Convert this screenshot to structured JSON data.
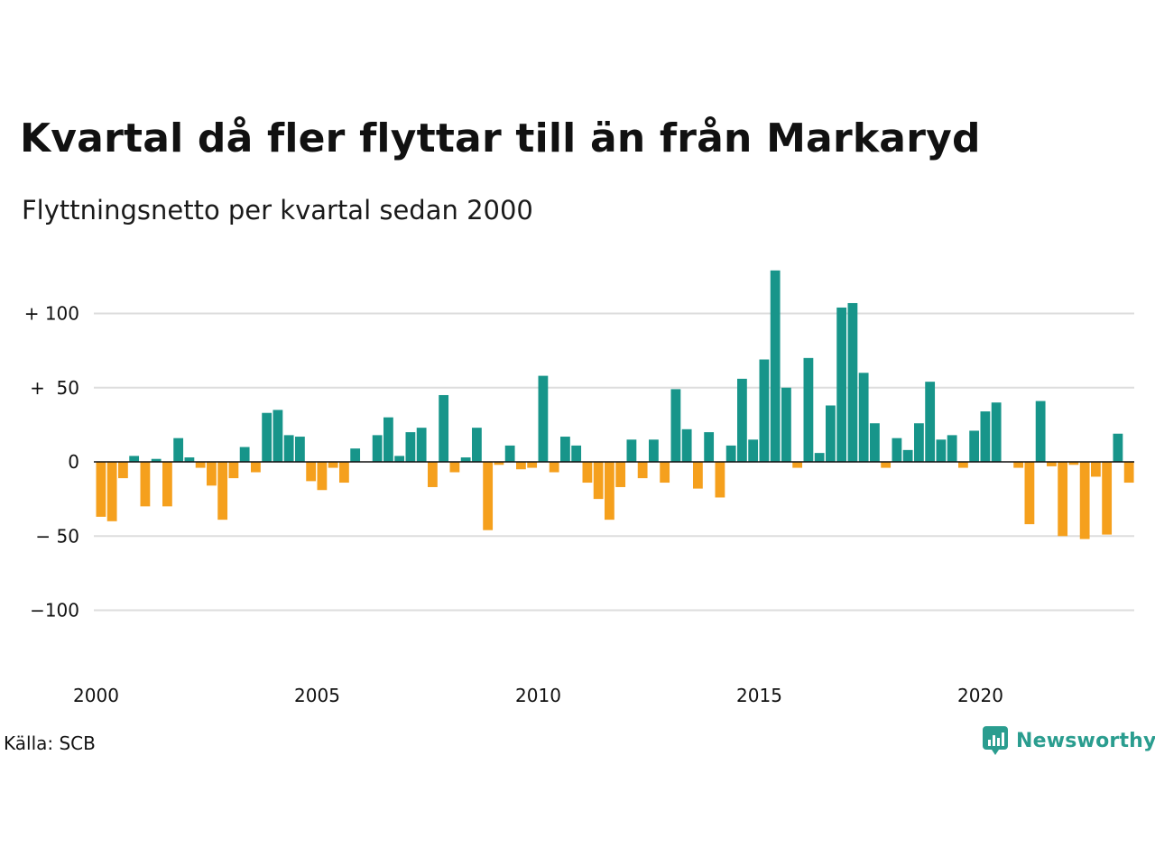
{
  "title": "Kvartal då fler flyttar till än från Markaryd",
  "subtitle": "Flyttningsnetto per kvartal sedan 2000",
  "source": "Källa: SCB",
  "brand": {
    "name": "Newsworthy",
    "icon": "newsworthy-logo-icon",
    "color": "#2a9d8f"
  },
  "colors": {
    "positive": "#17958a",
    "negative": "#f5a01d",
    "grid": "#dddddd",
    "zero": "#111111"
  },
  "chart_data": {
    "type": "bar",
    "x_start": 2000,
    "periods_per_year": 4,
    "ylim": [
      -140,
      140
    ],
    "grid": true,
    "y_ticks": [
      {
        "value": 100,
        "label": "+ 100"
      },
      {
        "value": 50,
        "label": "+  50"
      },
      {
        "value": 0,
        "label": "0"
      },
      {
        "value": -50,
        "label": "− 50"
      },
      {
        "value": -100,
        "label": "−100"
      }
    ],
    "x_ticks": [
      "2000",
      "2005",
      "2010",
      "2015",
      "2020"
    ],
    "values": [
      -37,
      -40,
      -11,
      4,
      -30,
      2,
      -30,
      16,
      3,
      -4,
      -16,
      -39,
      -11,
      10,
      -7,
      33,
      35,
      18,
      17,
      -13,
      -19,
      -4,
      -14,
      9,
      0,
      18,
      30,
      4,
      20,
      23,
      -17,
      45,
      -7,
      3,
      23,
      -46,
      -2,
      11,
      -5,
      -4,
      58,
      -7,
      17,
      11,
      -14,
      -25,
      -39,
      -17,
      15,
      -11,
      15,
      -14,
      49,
      22,
      -18,
      20,
      -24,
      11,
      56,
      15,
      69,
      129,
      50,
      -4,
      70,
      6,
      38,
      104,
      107,
      60,
      26,
      -4,
      16,
      8,
      26,
      54,
      15,
      18,
      -4,
      21,
      34,
      40,
      0,
      -4,
      -42,
      41,
      -3,
      -50,
      -2,
      -52,
      -10,
      -49,
      19,
      -14
    ]
  }
}
